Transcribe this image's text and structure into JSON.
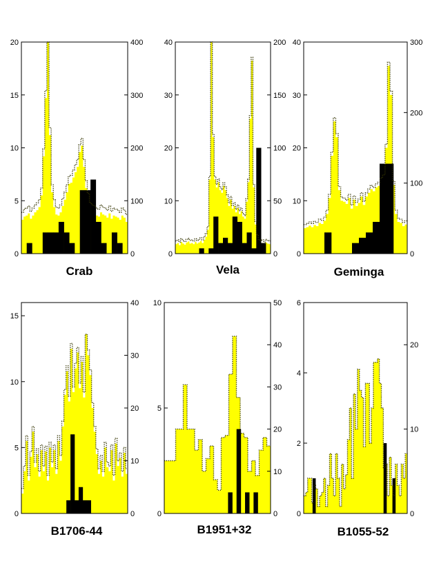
{
  "figure": {
    "description": "Pulse profiles of six gamma-ray pulsars"
  },
  "colors": {
    "fill": "#ffff00",
    "bar": "#000000",
    "dotted": "#333300"
  },
  "chart_data": [
    {
      "type": "histogram",
      "title": "Crab",
      "left_axis": {
        "lim": [
          0,
          20
        ],
        "ticks": [
          0,
          5,
          10,
          15,
          20
        ]
      },
      "right_axis": {
        "lim": [
          0,
          400
        ],
        "ticks": [
          0,
          100,
          200,
          300,
          400
        ]
      },
      "black_bins": [
        0,
        1,
        0,
        0,
        2,
        2,
        2,
        3,
        2,
        1,
        0,
        6,
        6,
        7,
        3,
        1,
        0,
        2,
        1,
        0
      ],
      "yellow_profile": [
        3.2,
        3.5,
        3.6,
        3.8,
        3.3,
        3.6,
        3.9,
        4.1,
        4.4,
        5.5,
        9.2,
        14.7,
        20,
        11.2,
        5.8,
        4.4,
        3.7,
        3.6,
        3.9,
        4.5,
        5.1,
        5.8,
        6.6,
        6.7,
        7.2,
        7.7,
        8.2,
        9.6,
        10.2,
        8.2,
        6.2,
        5.0,
        4.1,
        3.9,
        3.8,
        3.6,
        3.5,
        3.9,
        3.7,
        3.6,
        3.4,
        3.8,
        3.3,
        3.6,
        3.5,
        3.4,
        3.2,
        3.6,
        3.4,
        3.0
      ],
      "dotted_profile": [
        3.9,
        4.2,
        4.3,
        4.5,
        4.0,
        4.3,
        4.6,
        4.8,
        5.1,
        6.2,
        9.9,
        15.4,
        20,
        11.9,
        6.5,
        5.1,
        4.4,
        4.3,
        4.6,
        5.2,
        5.8,
        6.5,
        7.3,
        7.4,
        7.9,
        8.4,
        8.9,
        10.3,
        10.9,
        8.9,
        6.9,
        5.7,
        4.8,
        4.6,
        4.5,
        4.3,
        4.2,
        4.6,
        4.4,
        4.3,
        4.1,
        4.5,
        4.0,
        4.3,
        4.2,
        4.1,
        3.9,
        4.3,
        4.1,
        3.7
      ]
    },
    {
      "type": "histogram",
      "title": "Vela",
      "left_axis": {
        "lim": [
          0,
          40
        ],
        "ticks": [
          0,
          10,
          20,
          30,
          40
        ]
      },
      "right_axis": {
        "lim": [
          0,
          200
        ],
        "ticks": [
          0,
          50,
          100,
          150,
          200
        ]
      },
      "black_bins": [
        0,
        0,
        0,
        0,
        0,
        1,
        0,
        1,
        7,
        2,
        3,
        2,
        7,
        6,
        2,
        4,
        1,
        20,
        2,
        0
      ],
      "yellow_profile": [
        1.8,
        2.0,
        1.6,
        2.2,
        1.9,
        1.7,
        2.1,
        2.3,
        1.9,
        2.0,
        1.8,
        2.2,
        1.9,
        2.1,
        2.4,
        2.0,
        2.6,
        3.2,
        4.5,
        14.0,
        40,
        22.0,
        14.0,
        12.5,
        13.5,
        12.0,
        11.5,
        12.8,
        12.0,
        10.5,
        9.0,
        10.2,
        8.5,
        9.0,
        7.8,
        8.6,
        7.5,
        8.0,
        7.0,
        6.6,
        9.8,
        13.5,
        25.5,
        36.5,
        12.5,
        5.5,
        3.0,
        2.0,
        1.8,
        2.0,
        1.6,
        2.1,
        1.9,
        1.8
      ],
      "dotted_profile": [
        2.4,
        2.6,
        2.2,
        2.8,
        2.5,
        2.3,
        2.7,
        2.9,
        2.5,
        2.6,
        2.4,
        2.8,
        2.5,
        2.7,
        3.0,
        2.6,
        3.2,
        3.8,
        5.1,
        14.6,
        40,
        22.6,
        14.6,
        13.1,
        14.1,
        12.6,
        12.1,
        13.4,
        12.6,
        11.1,
        9.6,
        10.8,
        9.1,
        9.6,
        8.4,
        9.2,
        8.1,
        8.6,
        7.6,
        7.2,
        10.4,
        14.1,
        26.1,
        37.1,
        13.1,
        6.1,
        3.6,
        2.6,
        2.4,
        2.6,
        2.2,
        2.7,
        2.5,
        2.4
      ]
    },
    {
      "type": "histogram",
      "title": "Geminga",
      "left_axis": {
        "lim": [
          0,
          40
        ],
        "ticks": [
          0,
          10,
          20,
          30,
          40
        ]
      },
      "right_axis": {
        "lim": [
          0,
          300
        ],
        "ticks": [
          0,
          100,
          200,
          300
        ]
      },
      "black_bins": [
        0,
        0,
        0,
        4,
        0,
        0,
        0,
        2,
        3,
        4,
        6,
        17,
        17,
        0,
        0
      ],
      "yellow_profile": [
        4.8,
        5.0,
        5.3,
        5.0,
        5.4,
        5.2,
        5.8,
        5.6,
        6.2,
        7.5,
        10.5,
        18.5,
        25.0,
        22.0,
        12.0,
        10.0,
        9.8,
        9.4,
        10.5,
        8.5,
        10.2,
        9.0,
        9.6,
        10.8,
        9.2,
        10.8,
        11.5,
        12.2,
        11.8,
        12.5,
        12.8,
        13.6,
        14.2,
        20.0,
        35.5,
        30.0,
        13.0,
        7.5,
        6.0,
        5.8,
        5.2,
        5.5
      ],
      "dotted_profile": [
        5.5,
        5.7,
        6.0,
        5.7,
        6.1,
        5.9,
        6.5,
        6.3,
        6.9,
        8.2,
        11.2,
        19.2,
        25.7,
        22.7,
        12.7,
        10.7,
        10.5,
        10.1,
        11.2,
        9.2,
        10.9,
        9.7,
        10.3,
        11.5,
        9.9,
        11.5,
        12.2,
        12.9,
        12.5,
        13.2,
        13.5,
        14.3,
        14.9,
        20.7,
        36.2,
        30.7,
        13.7,
        8.2,
        6.7,
        6.5,
        5.9,
        6.2
      ]
    },
    {
      "type": "histogram",
      "title": "B1706-44",
      "left_axis": {
        "lim": [
          0,
          16
        ],
        "ticks": [
          0,
          5,
          10,
          15
        ]
      },
      "right_axis": {
        "lim": [
          0,
          40
        ],
        "ticks": [
          0,
          10,
          20,
          30,
          40
        ]
      },
      "black_bins": [
        0,
        0,
        0,
        0,
        0,
        0,
        0,
        0,
        0,
        0,
        0,
        1,
        6,
        1,
        2,
        1,
        1,
        0,
        0,
        0,
        0,
        0,
        0,
        0,
        0,
        0
      ],
      "yellow_profile": [
        1.5,
        3.2,
        5.5,
        2.5,
        4.3,
        6.2,
        3.5,
        4.5,
        2.8,
        4.8,
        3.2,
        4.7,
        2.5,
        5.0,
        3.5,
        4.8,
        3.0,
        5.5,
        4.0,
        6.6,
        9.0,
        10.8,
        8.5,
        12.5,
        9.2,
        11.0,
        12.2,
        9.5,
        11.5,
        8.8,
        13.6,
        12.0,
        10.5,
        8.0,
        6.2,
        4.5,
        3.0,
        4.0,
        2.8,
        5.0,
        3.5,
        3.2,
        4.8,
        2.5,
        5.3,
        3.6,
        4.2,
        2.8,
        4.6,
        3.0
      ],
      "dotted_profile": [
        1.9,
        3.6,
        5.9,
        2.9,
        4.7,
        6.6,
        3.9,
        4.9,
        3.2,
        5.2,
        3.6,
        5.1,
        2.9,
        5.4,
        3.9,
        5.2,
        3.4,
        5.9,
        4.4,
        7.0,
        9.4,
        11.2,
        8.9,
        12.9,
        9.6,
        11.4,
        12.6,
        9.9,
        11.9,
        9.2,
        13.6,
        12.4,
        10.9,
        8.4,
        6.6,
        4.9,
        3.4,
        4.4,
        3.2,
        5.4,
        3.9,
        3.6,
        5.2,
        2.9,
        5.7,
        4.0,
        4.6,
        3.2,
        5.0,
        3.4
      ]
    },
    {
      "type": "histogram",
      "title": "B1951+32",
      "left_axis": {
        "lim": [
          0,
          10
        ],
        "ticks": [
          0,
          5,
          10
        ]
      },
      "right_axis": {
        "lim": [
          0,
          50
        ],
        "ticks": [
          0,
          10,
          20,
          30,
          40,
          50
        ]
      },
      "black_bins": [
        0,
        0,
        0,
        0,
        0,
        0,
        0,
        0,
        0,
        0,
        0,
        0,
        0,
        0,
        0,
        1,
        0,
        4,
        0,
        1,
        0,
        1,
        0,
        0,
        0
      ],
      "yellow_profile": [
        2.5,
        2.5,
        2.5,
        4.0,
        4.0,
        6.1,
        4.0,
        4.0,
        3.0,
        3.5,
        2.0,
        2.6,
        3.2,
        1.6,
        1.1,
        3.6,
        3.7,
        6.6,
        8.4,
        5.5,
        3.8,
        3.6,
        2.0,
        2.5,
        1.8,
        3.0,
        3.6,
        3.2
      ],
      "dotted_profile": [
        2.5,
        2.5,
        2.5,
        4.0,
        4.0,
        6.1,
        4.0,
        4.0,
        3.0,
        3.5,
        2.0,
        2.6,
        3.2,
        1.6,
        1.1,
        3.6,
        3.7,
        6.6,
        8.4,
        5.5,
        3.8,
        3.6,
        2.0,
        2.5,
        1.8,
        3.0,
        3.6,
        3.2
      ]
    },
    {
      "type": "histogram",
      "title": "B1055-52",
      "left_axis": {
        "lim": [
          0,
          6
        ],
        "ticks": [
          0,
          2,
          4,
          6
        ]
      },
      "right_axis": {
        "lim": [
          0,
          25
        ],
        "ticks": [
          0,
          10,
          20
        ]
      },
      "black_bins": [
        0,
        0,
        0,
        1,
        0,
        0,
        0,
        0,
        0,
        0,
        0,
        0,
        0,
        0,
        0,
        0,
        0,
        0,
        0,
        0,
        0,
        0,
        0,
        0,
        0,
        0,
        0,
        2,
        0,
        0,
        1,
        0,
        0,
        0,
        0
      ],
      "yellow_profile": [
        0.5,
        0.6,
        1.0,
        1.0,
        0.3,
        0.8,
        0.7,
        0.2,
        0.5,
        0.6,
        1.0,
        0.2,
        0.8,
        1.7,
        1.0,
        0.5,
        1.7,
        1.0,
        0.2,
        1.4,
        0.7,
        1.1,
        2.1,
        3.0,
        1.0,
        3.4,
        2.4,
        4.1,
        3.5,
        3.3,
        1.9,
        3.7,
        3.7,
        2.0,
        3.0,
        4.3,
        4.3,
        4.4,
        3.7,
        3.0,
        1.3,
        1.4,
        0.5,
        1.6,
        0.8,
        0.5,
        1.4,
        0.8,
        0.5,
        1.4,
        1.0,
        1.7
      ],
      "dotted_profile": [
        0.5,
        0.6,
        1.0,
        1.0,
        0.3,
        0.8,
        0.7,
        0.2,
        0.5,
        0.6,
        1.0,
        0.2,
        0.8,
        1.7,
        1.0,
        0.5,
        1.7,
        1.0,
        0.2,
        1.4,
        0.7,
        1.1,
        2.1,
        3.0,
        1.0,
        3.4,
        2.4,
        4.1,
        3.5,
        3.3,
        1.9,
        3.7,
        3.7,
        2.0,
        3.0,
        4.3,
        4.3,
        4.4,
        3.7,
        3.0,
        1.3,
        1.4,
        0.5,
        1.6,
        0.8,
        0.5,
        1.4,
        0.8,
        0.5,
        1.4,
        1.0,
        1.7
      ]
    }
  ]
}
